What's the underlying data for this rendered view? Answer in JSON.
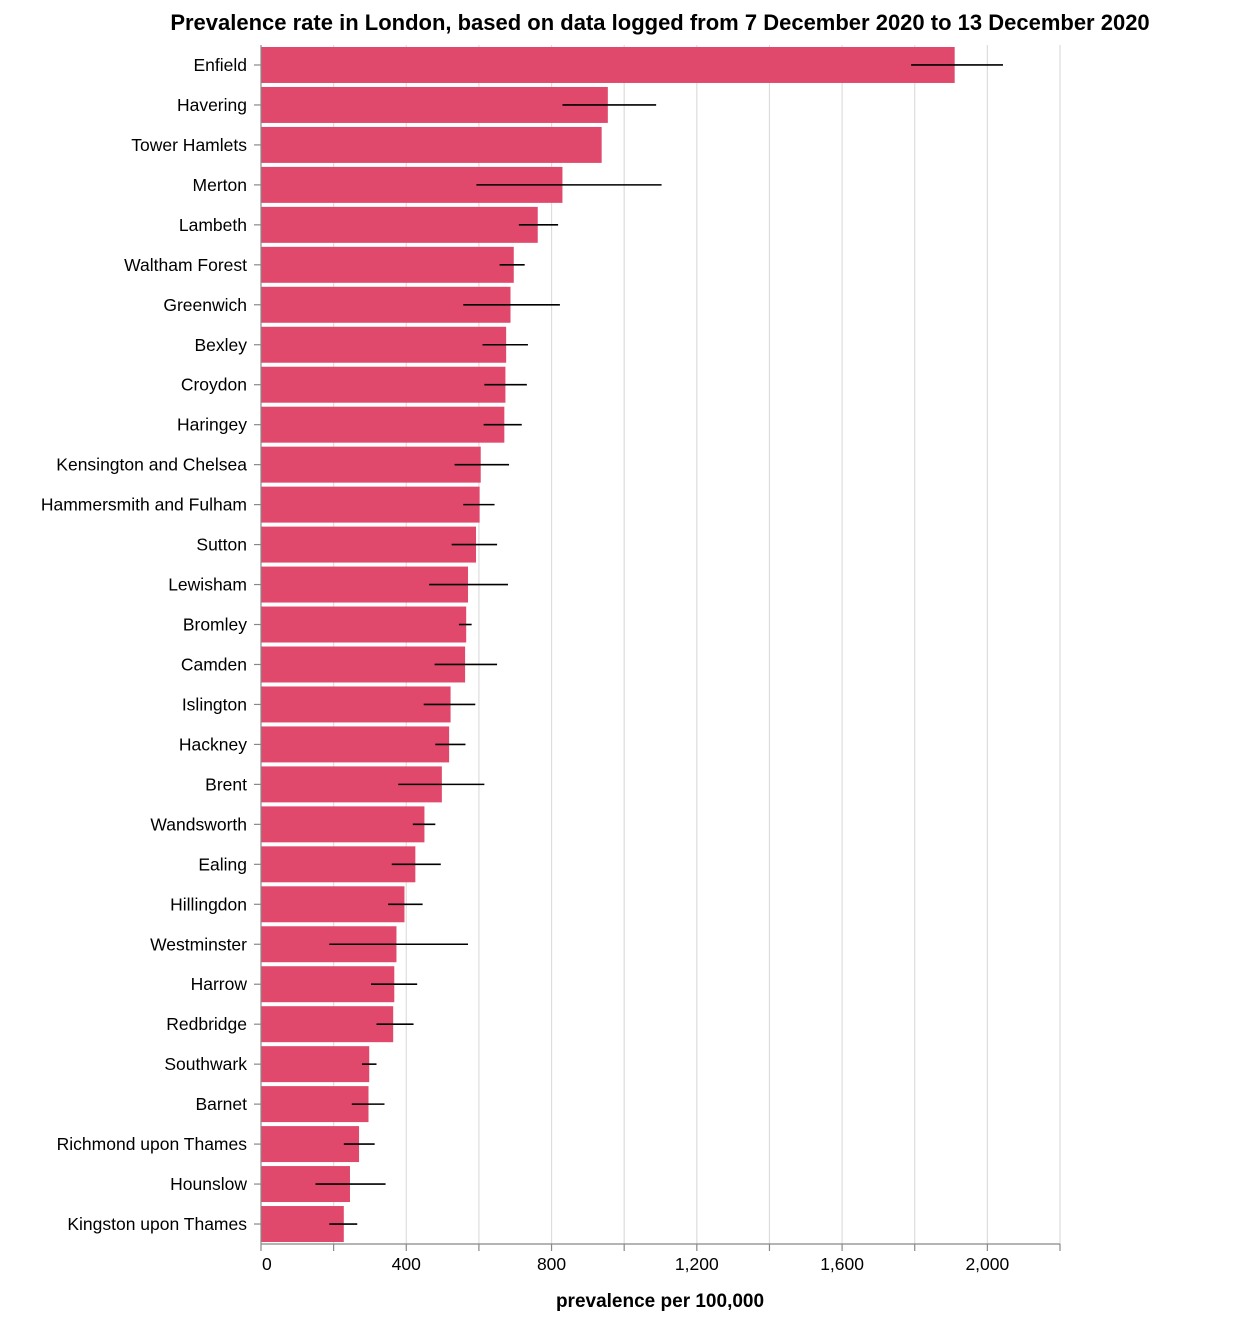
{
  "chart_data": {
    "type": "bar",
    "orientation": "horizontal",
    "title": "Prevalence rate in London, based on data logged from 7 December 2020 to 13 December 2020",
    "xlabel": "prevalence per 100,000",
    "ylabel": "",
    "xlim": [
      0,
      2200
    ],
    "x_ticks": [
      0,
      400,
      800,
      1200,
      1600,
      2000
    ],
    "x_tick_labels": [
      "0",
      "400",
      "800",
      "1,200",
      "1,600",
      "2,000"
    ],
    "grid": true,
    "bar_color": "#e0496c",
    "error_bar_color": "#000000",
    "categories": [
      "Enfield",
      "Havering",
      "Tower Hamlets",
      "Merton",
      "Lambeth",
      "Waltham Forest",
      "Greenwich",
      "Bexley",
      "Croydon",
      "Haringey",
      "Kensington and Chelsea",
      "Hammersmith and Fulham",
      "Sutton",
      "Lewisham",
      "Bromley",
      "Camden",
      "Islington",
      "Hackney",
      "Brent",
      "Wandsworth",
      "Ealing",
      "Hillingdon",
      "Westminster",
      "Harrow",
      "Redbridge",
      "Southwark",
      "Barnet",
      "Richmond upon Thames",
      "Hounslow",
      "Kingston upon Thames"
    ],
    "values": [
      1910,
      955,
      938,
      830,
      762,
      696,
      687,
      675,
      673,
      670,
      605,
      602,
      592,
      570,
      565,
      562,
      522,
      518,
      498,
      450,
      425,
      395,
      373,
      367,
      364,
      298,
      296,
      270,
      245,
      228
    ],
    "error_low": [
      1790,
      830,
      null,
      593,
      710,
      657,
      557,
      610,
      615,
      613,
      533,
      557,
      525,
      463,
      545,
      478,
      448,
      480,
      378,
      418,
      360,
      350,
      188,
      303,
      318,
      278,
      250,
      228,
      150,
      188
    ],
    "error_high": [
      2043,
      1088,
      null,
      1103,
      818,
      726,
      823,
      735,
      732,
      718,
      683,
      643,
      650,
      680,
      580,
      650,
      590,
      563,
      615,
      480,
      495,
      445,
      570,
      430,
      420,
      318,
      340,
      313,
      343,
      265
    ]
  }
}
